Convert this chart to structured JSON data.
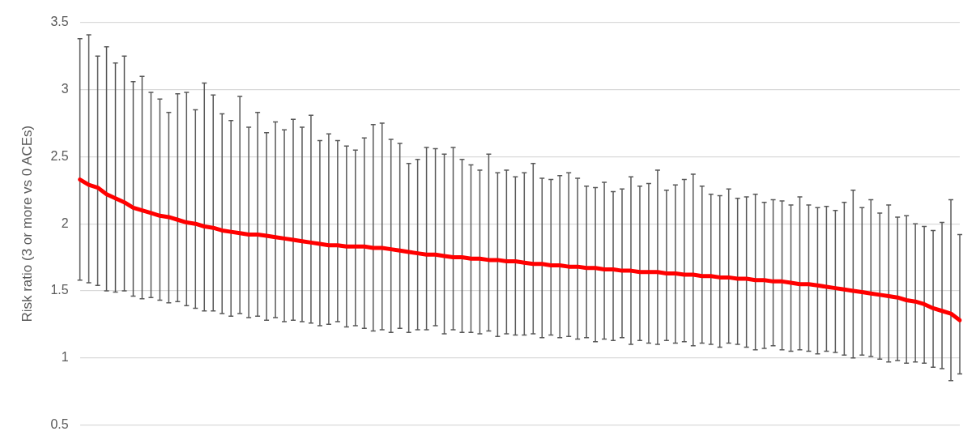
{
  "chart_data": {
    "type": "line",
    "ylabel": "Risk ratio (3 or more vs 0 ACEs)",
    "categories": [
      null,
      null,
      null,
      null,
      null,
      null,
      null,
      null,
      null,
      null,
      null,
      null,
      null,
      null,
      null,
      null,
      null,
      null,
      null,
      null,
      null,
      null,
      null,
      null,
      null,
      null,
      null,
      null,
      null,
      null,
      null,
      null,
      null,
      null,
      null,
      null,
      null,
      null,
      null,
      null,
      null,
      null,
      null,
      null,
      null,
      null,
      null,
      null,
      null,
      null,
      null,
      null,
      null,
      null,
      null,
      null,
      null,
      null,
      null,
      null,
      null,
      null,
      null,
      null,
      null,
      null,
      null,
      null,
      null,
      null,
      null,
      null,
      null,
      null,
      null,
      null,
      null,
      null,
      null,
      null,
      null,
      null,
      null,
      null,
      null,
      null,
      null,
      null,
      null,
      null,
      null,
      null,
      null,
      null,
      null,
      null,
      null,
      null,
      null,
      null
    ],
    "series": [
      {
        "color": "#ff0000",
        "values": [
          2.33,
          2.29,
          2.27,
          2.22,
          2.19,
          2.16,
          2.12,
          2.1,
          2.08,
          2.06,
          2.05,
          2.03,
          2.01,
          2.0,
          1.98,
          1.97,
          1.95,
          1.94,
          1.93,
          1.92,
          1.92,
          1.91,
          1.9,
          1.89,
          1.88,
          1.87,
          1.86,
          1.85,
          1.84,
          1.84,
          1.83,
          1.83,
          1.83,
          1.82,
          1.82,
          1.81,
          1.8,
          1.79,
          1.78,
          1.77,
          1.77,
          1.76,
          1.75,
          1.75,
          1.74,
          1.74,
          1.73,
          1.73,
          1.72,
          1.72,
          1.71,
          1.7,
          1.7,
          1.69,
          1.69,
          1.68,
          1.68,
          1.67,
          1.67,
          1.66,
          1.66,
          1.65,
          1.65,
          1.64,
          1.64,
          1.64,
          1.63,
          1.63,
          1.62,
          1.62,
          1.61,
          1.61,
          1.6,
          1.6,
          1.59,
          1.59,
          1.58,
          1.58,
          1.57,
          1.57,
          1.56,
          1.55,
          1.55,
          1.54,
          1.53,
          1.52,
          1.51,
          1.5,
          1.49,
          1.48,
          1.47,
          1.46,
          1.45,
          1.43,
          1.42,
          1.4,
          1.37,
          1.35,
          1.33,
          1.28
        ],
        "errors": [
          [
            1.58,
            3.38
          ],
          [
            1.56,
            3.41
          ],
          [
            1.54,
            3.25
          ],
          [
            1.5,
            3.32
          ],
          [
            1.49,
            3.2
          ],
          [
            1.5,
            3.25
          ],
          [
            1.46,
            3.06
          ],
          [
            1.44,
            3.1
          ],
          [
            1.45,
            2.98
          ],
          [
            1.43,
            2.93
          ],
          [
            1.41,
            2.83
          ],
          [
            1.42,
            2.97
          ],
          [
            1.39,
            2.98
          ],
          [
            1.37,
            2.85
          ],
          [
            1.35,
            3.05
          ],
          [
            1.35,
            2.96
          ],
          [
            1.33,
            2.82
          ],
          [
            1.31,
            2.77
          ],
          [
            1.33,
            2.95
          ],
          [
            1.3,
            2.72
          ],
          [
            1.31,
            2.83
          ],
          [
            1.28,
            2.68
          ],
          [
            1.3,
            2.76
          ],
          [
            1.27,
            2.7
          ],
          [
            1.28,
            2.78
          ],
          [
            1.27,
            2.72
          ],
          [
            1.26,
            2.81
          ],
          [
            1.24,
            2.62
          ],
          [
            1.25,
            2.67
          ],
          [
            1.27,
            2.62
          ],
          [
            1.23,
            2.58
          ],
          [
            1.24,
            2.55
          ],
          [
            1.22,
            2.64
          ],
          [
            1.2,
            2.74
          ],
          [
            1.21,
            2.75
          ],
          [
            1.19,
            2.63
          ],
          [
            1.22,
            2.6
          ],
          [
            1.19,
            2.45
          ],
          [
            1.21,
            2.48
          ],
          [
            1.21,
            2.57
          ],
          [
            1.24,
            2.56
          ],
          [
            1.18,
            2.52
          ],
          [
            1.21,
            2.57
          ],
          [
            1.19,
            2.48
          ],
          [
            1.19,
            2.44
          ],
          [
            1.18,
            2.4
          ],
          [
            1.2,
            2.52
          ],
          [
            1.16,
            2.38
          ],
          [
            1.18,
            2.4
          ],
          [
            1.17,
            2.35
          ],
          [
            1.17,
            2.38
          ],
          [
            1.18,
            2.45
          ],
          [
            1.15,
            2.34
          ],
          [
            1.17,
            2.33
          ],
          [
            1.15,
            2.36
          ],
          [
            1.16,
            2.38
          ],
          [
            1.14,
            2.34
          ],
          [
            1.15,
            2.28
          ],
          [
            1.12,
            2.27
          ],
          [
            1.14,
            2.31
          ],
          [
            1.13,
            2.24
          ],
          [
            1.15,
            2.26
          ],
          [
            1.1,
            2.35
          ],
          [
            1.13,
            2.28
          ],
          [
            1.11,
            2.3
          ],
          [
            1.1,
            2.4
          ],
          [
            1.13,
            2.25
          ],
          [
            1.11,
            2.29
          ],
          [
            1.12,
            2.33
          ],
          [
            1.09,
            2.37
          ],
          [
            1.11,
            2.28
          ],
          [
            1.1,
            2.22
          ],
          [
            1.08,
            2.21
          ],
          [
            1.11,
            2.26
          ],
          [
            1.1,
            2.19
          ],
          [
            1.08,
            2.2
          ],
          [
            1.06,
            2.22
          ],
          [
            1.07,
            2.16
          ],
          [
            1.09,
            2.18
          ],
          [
            1.06,
            2.17
          ],
          [
            1.05,
            2.14
          ],
          [
            1.06,
            2.2
          ],
          [
            1.05,
            2.14
          ],
          [
            1.03,
            2.12
          ],
          [
            1.05,
            2.13
          ],
          [
            1.04,
            2.1
          ],
          [
            1.02,
            2.16
          ],
          [
            1.0,
            2.25
          ],
          [
            1.02,
            2.12
          ],
          [
            1.01,
            2.18
          ],
          [
            0.99,
            2.08
          ],
          [
            0.97,
            2.14
          ],
          [
            0.98,
            2.05
          ],
          [
            0.96,
            2.06
          ],
          [
            0.97,
            2.0
          ],
          [
            0.96,
            1.98
          ],
          [
            0.93,
            1.95
          ],
          [
            0.92,
            2.01
          ],
          [
            0.83,
            2.18
          ],
          [
            0.88,
            1.92
          ]
        ]
      }
    ],
    "ylim": [
      0.5,
      3.5
    ],
    "yticks": [
      0.5,
      1,
      1.5,
      2,
      2.5,
      3,
      3.5
    ],
    "grid": "y",
    "marker": "none",
    "tick_labels": "y",
    "legend": false
  }
}
